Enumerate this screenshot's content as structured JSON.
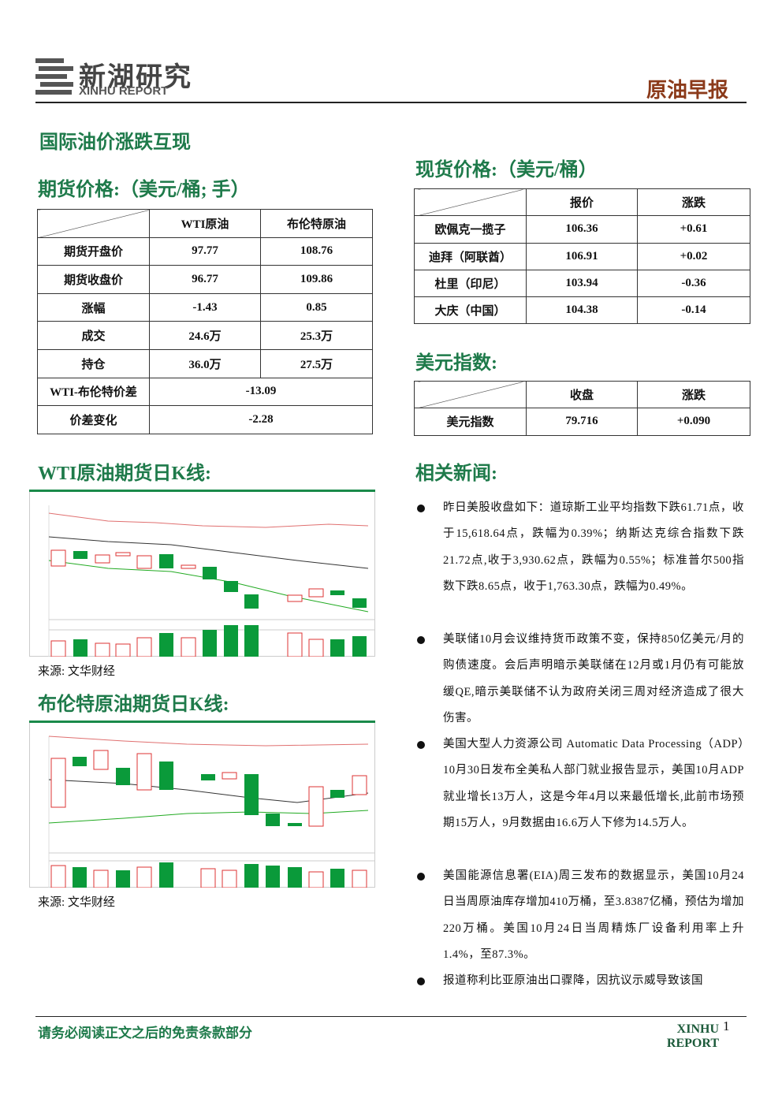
{
  "header": {
    "logo_cn": "新湖研究",
    "logo_en": "XINHU REPORT",
    "report_type": "原油早报"
  },
  "headline": "国际油价涨跌互现",
  "futures": {
    "title": "期货价格:（美元/桶; 手）",
    "columns": [
      "WTI原油",
      "布伦特原油"
    ],
    "rows": [
      [
        "期货开盘价",
        "97.77",
        "108.76"
      ],
      [
        "期货收盘价",
        "96.77",
        "109.86"
      ],
      [
        "涨幅",
        "-1.43",
        "0.85"
      ],
      [
        "成交",
        "24.6万",
        "25.3万"
      ],
      [
        "持仓",
        "36.0万",
        "27.5万"
      ]
    ],
    "spread_rows": [
      [
        "WTI-布伦特价差",
        "-13.09"
      ],
      [
        "价差变化",
        "-2.28"
      ]
    ]
  },
  "spot": {
    "title": "现货价格:（美元/桶）",
    "columns": [
      "报价",
      "涨跌"
    ],
    "rows": [
      [
        "欧佩克一揽子",
        "106.36",
        "+0.61"
      ],
      [
        "迪拜（阿联酋）",
        "106.91",
        "+0.02"
      ],
      [
        "杜里（印尼）",
        "103.94",
        "-0.36"
      ],
      [
        "大庆（中国）",
        "104.38",
        "-0.14"
      ]
    ]
  },
  "dollar_index": {
    "title": "美元指数:",
    "columns": [
      "收盘",
      "涨跌"
    ],
    "rows": [
      [
        "美元指数",
        "79.716",
        "+0.090"
      ]
    ]
  },
  "charts": [
    {
      "title": "WTI原油期货日K线:",
      "source": "来源: 文华财经"
    },
    {
      "title": "布伦特原油期货日K线:",
      "source": "来源: 文华财经"
    }
  ],
  "news": {
    "title": "相关新闻:",
    "items": [
      "昨日美股收盘如下：道琼斯工业平均指数下跌61.71点，收于15,618.64点，跌幅为0.39%；纳斯达克综合指数下跌21.72点,收于3,930.62点，跌幅为0.55%；标准普尔500指数下跌8.65点，收于1,763.30点，跌幅为0.49%。",
      "美联储10月会议维持货币政策不变，保持850亿美元/月的购债速度。会后声明暗示美联储在12月或1月仍有可能放缓QE,暗示美联储不认为政府关闭三周对经济造成了很大伤害。",
      "美国大型人力资源公司 Automatic Data Processing（ADP）10月30日发布全美私人部门就业报告显示，美国10月ADP就业增长13万人，这是今年4月以来最低增长,此前市场预期15万人，9月数据由16.6万人下修为14.5万人。",
      "美国能源信息署(EIA)周三发布的数据显示，美国10月24日当周原油库存增加410万桶，至3.8387亿桶，预估为增加220万桶。美国10月24日当周精炼厂设备利用率上升1.4%，至87.3%。",
      "报道称利比亚原油出口骤降，因抗议示威导致该国"
    ]
  },
  "footer": {
    "disclaimer": "请务必阅读正文之后的免责条款部分",
    "brand": "XINHU REPORT",
    "page": "1"
  }
}
